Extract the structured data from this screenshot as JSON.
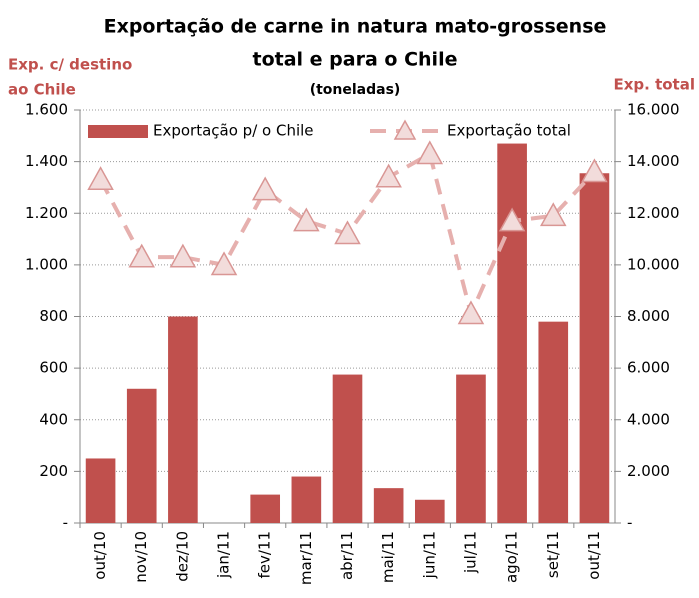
{
  "chart_data": {
    "type": "bar",
    "title": [
      "Exportação de carne in natura mato-grossense",
      "total e para o Chile"
    ],
    "subtitle": "(toneladas)",
    "ylabel": [
      "Exp. c/ destino",
      "ao Chile"
    ],
    "y2label": "Exp. total",
    "categories": [
      "out/10",
      "nov/10",
      "dez/10",
      "jan/11",
      "fev/11",
      "mar/11",
      "abr/11",
      "mai/11",
      "jun/11",
      "jul/11",
      "ago/11",
      "set/11",
      "out/11"
    ],
    "series": [
      {
        "name": "Exportação p/ o Chile",
        "type": "bar",
        "color": "#c0504d",
        "values": [
          250,
          520,
          800,
          0,
          110,
          180,
          575,
          135,
          90,
          575,
          1470,
          780,
          1355
        ]
      },
      {
        "name": "Exportação total",
        "type": "line",
        "axis": "y2",
        "color": "#e6b0ae",
        "values": [
          13300,
          10300,
          10300,
          10000,
          12900,
          11700,
          11200,
          13400,
          14300,
          8100,
          11700,
          11900,
          13600
        ]
      }
    ],
    "ylim": [
      0,
      1600
    ],
    "yticks": [
      {
        "value": 0,
        "label": "-"
      },
      200,
      400,
      600,
      800,
      {
        "value": 1000,
        "label": "1.000"
      },
      {
        "value": 1200,
        "label": "1.200"
      },
      {
        "value": 1400,
        "label": "1.400"
      },
      {
        "value": 1600,
        "label": "1.600"
      }
    ],
    "y2lim": [
      0,
      16000
    ],
    "y2ticks": [
      {
        "value": 0,
        "label": "-"
      },
      {
        "value": 2000,
        "label": "2.000"
      },
      {
        "value": 4000,
        "label": "4.000"
      },
      {
        "value": 6000,
        "label": "6.000"
      },
      {
        "value": 8000,
        "label": "8.000"
      },
      {
        "value": 10000,
        "label": "10.000"
      },
      {
        "value": 12000,
        "label": "12.000"
      },
      {
        "value": 14000,
        "label": "14.000"
      },
      {
        "value": 16000,
        "label": "16.000"
      }
    ],
    "grid": true,
    "legend": "top"
  }
}
